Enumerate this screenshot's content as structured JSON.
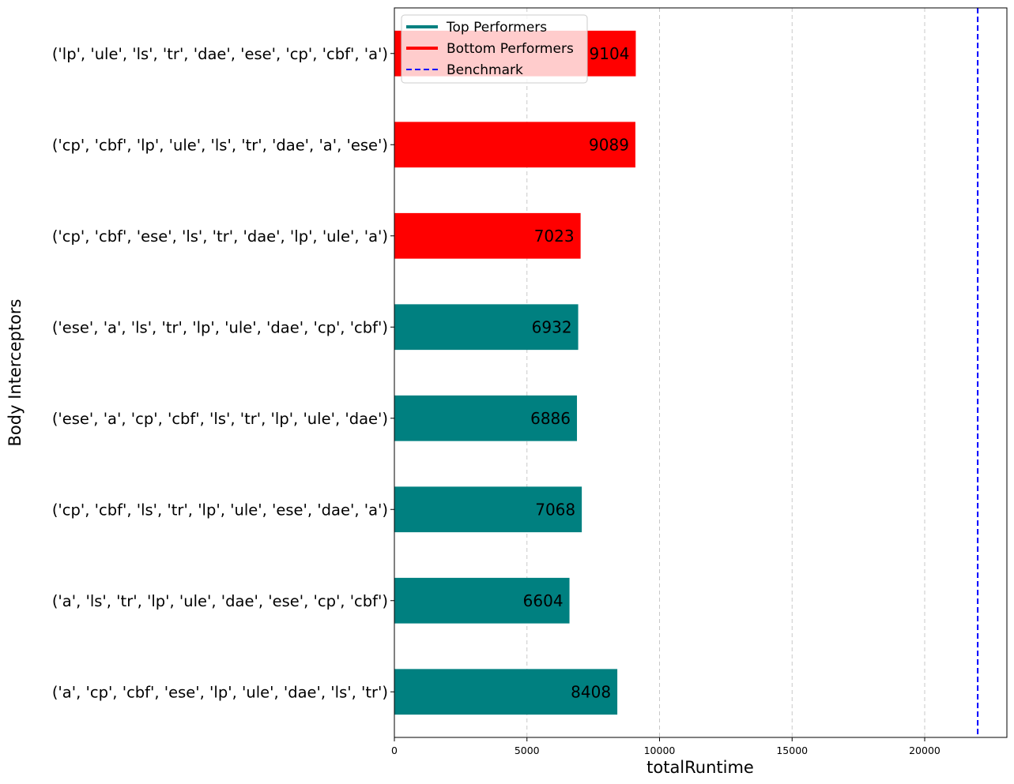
{
  "chart_data": {
    "type": "bar",
    "orientation": "horizontal",
    "title": "",
    "xlabel": "totalRuntime",
    "ylabel": "Body Interceptors",
    "xlim": [
      0,
      23100
    ],
    "xticks": [
      0,
      5000,
      10000,
      15000,
      20000
    ],
    "grid": "x-dashed",
    "legend_placement": "top-left",
    "benchmark": 22000,
    "colors": {
      "top": "#008080",
      "bottom": "#ff0000",
      "benchmark": "#0000ff"
    },
    "legend": [
      {
        "label": "Top Performers",
        "style": "solid",
        "color": "#008080"
      },
      {
        "label": "Bottom Performers",
        "style": "solid",
        "color": "#ff0000"
      },
      {
        "label": "Benchmark",
        "style": "dashed",
        "color": "#0000ff"
      }
    ],
    "bars": [
      {
        "label": "('lp', 'ule', 'ls', 'tr', 'dae', 'ese', 'cp', 'cbf', 'a')",
        "value": 9104,
        "group": "bottom"
      },
      {
        "label": "('cp', 'cbf', 'lp', 'ule', 'ls', 'tr', 'dae', 'a', 'ese')",
        "value": 9089,
        "group": "bottom"
      },
      {
        "label": "('cp', 'cbf', 'ese', 'ls', 'tr', 'dae', 'lp', 'ule', 'a')",
        "value": 7023,
        "group": "bottom"
      },
      {
        "label": "('ese', 'a', 'ls', 'tr', 'lp', 'ule', 'dae', 'cp', 'cbf')",
        "value": 6932,
        "group": "top"
      },
      {
        "label": "('ese', 'a', 'cp', 'cbf', 'ls', 'tr', 'lp', 'ule', 'dae')",
        "value": 6886,
        "group": "top"
      },
      {
        "label": "('cp', 'cbf', 'ls', 'tr', 'lp', 'ule', 'ese', 'dae', 'a')",
        "value": 7068,
        "group": "top"
      },
      {
        "label": "('a', 'ls', 'tr', 'lp', 'ule', 'dae', 'ese', 'cp', 'cbf')",
        "value": 6604,
        "group": "top"
      },
      {
        "label": "('a', 'cp', 'cbf', 'ese', 'lp', 'ule', 'dae', 'ls', 'tr')",
        "value": 8408,
        "group": "top"
      }
    ]
  }
}
